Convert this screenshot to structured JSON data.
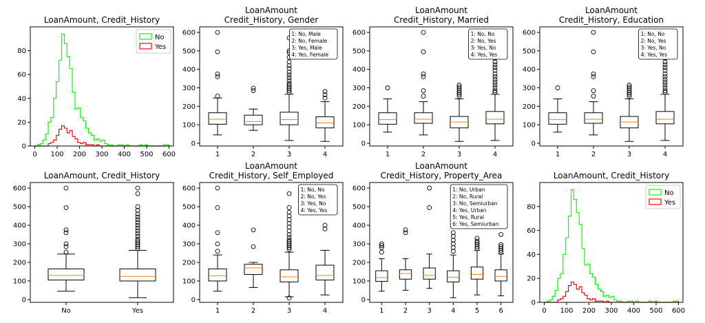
{
  "chart_data": [
    {
      "type": "histogram",
      "title": [
        "LoanAmount, Credit_History"
      ],
      "xlim": [
        -20,
        620
      ],
      "ylim": [
        0,
        100
      ],
      "xticks": [
        0,
        100,
        200,
        300,
        400,
        500,
        600
      ],
      "yticks": [
        0,
        20,
        40,
        60,
        80
      ],
      "bin_edges": [
        0,
        12,
        24,
        36,
        48,
        60,
        72,
        84,
        96,
        108,
        120,
        132,
        144,
        156,
        168,
        180,
        192,
        204,
        216,
        228,
        240,
        252,
        264,
        276,
        288,
        300,
        312,
        324,
        336,
        348,
        360,
        372,
        384,
        396,
        408,
        420,
        432,
        444,
        456,
        468,
        480,
        492,
        504,
        516,
        528,
        540,
        552,
        564,
        576,
        588,
        600
      ],
      "series": [
        {
          "name": "No",
          "color": "#00ff00",
          "values": [
            0,
            1,
            2,
            5,
            10,
            20,
            24,
            40,
            54,
            72,
            94,
            86,
            75,
            65,
            45,
            31,
            32,
            24,
            21,
            15,
            11,
            9,
            5,
            6,
            4,
            5,
            2,
            1,
            1,
            0,
            0,
            1,
            1,
            0,
            1,
            0,
            0,
            0,
            0,
            1,
            0,
            1,
            0,
            0,
            0,
            0,
            0,
            0,
            1,
            1
          ]
        },
        {
          "name": "Yes",
          "color": "#ff0000",
          "values": [
            0,
            0,
            0,
            0,
            0,
            2,
            3,
            5,
            9,
            14,
            17,
            15,
            11,
            13,
            8,
            6,
            3,
            2,
            3,
            1,
            1,
            1,
            0,
            1,
            0,
            0,
            0,
            0,
            0,
            0,
            0,
            0,
            0,
            0,
            0,
            0,
            0,
            0,
            0,
            0,
            0,
            0,
            0,
            0,
            0,
            0,
            0,
            0,
            0,
            0
          ]
        }
      ],
      "legend_position": "top-right"
    },
    {
      "type": "boxplot",
      "title": [
        "LoanAmount",
        "Credit_History, Gender"
      ],
      "ylim": [
        -15,
        630
      ],
      "yticks": [
        0,
        100,
        200,
        300,
        400,
        500,
        600
      ],
      "categories": [
        "1",
        "2",
        "3",
        "4"
      ],
      "boxes": [
        {
          "whislo": 45,
          "q1": 103,
          "med": 130,
          "q3": 165,
          "whishi": 245,
          "fliers": [
            255,
            360,
            375,
            495,
            600
          ]
        },
        {
          "whislo": 70,
          "q1": 100,
          "med": 118,
          "q3": 152,
          "whishi": 185,
          "fliers": [
            285,
            298
          ]
        },
        {
          "whislo": 15,
          "q1": 100,
          "med": 128,
          "q3": 168,
          "whishi": 265,
          "fliers": [
            275,
            285,
            295,
            305,
            315,
            325,
            340,
            355,
            370,
            385,
            405,
            420,
            440,
            465,
            490,
            500,
            570
          ]
        },
        {
          "whislo": 10,
          "q1": 83,
          "med": 110,
          "q3": 143,
          "whishi": 225,
          "fliers": [
            245,
            262,
            280,
            470
          ]
        }
      ],
      "annotation": [
        "1: No, Male",
        "2: No, Female",
        "3: Yes, Male",
        "4: Yes, Female"
      ]
    },
    {
      "type": "boxplot",
      "title": [
        "LoanAmount",
        "Credit_History, Married"
      ],
      "ylim": [
        -15,
        630
      ],
      "yticks": [
        0,
        100,
        200,
        300,
        400,
        500,
        600
      ],
      "categories": [
        "1",
        "2",
        "3",
        "4"
      ],
      "boxes": [
        {
          "whislo": 60,
          "q1": 103,
          "med": 128,
          "q3": 165,
          "whishi": 240,
          "fliers": [
            300
          ]
        },
        {
          "whislo": 45,
          "q1": 108,
          "med": 130,
          "q3": 165,
          "whishi": 225,
          "fliers": [
            255,
            285,
            360,
            375,
            495,
            600
          ]
        },
        {
          "whislo": 10,
          "q1": 83,
          "med": 115,
          "q3": 145,
          "whishi": 240,
          "fliers": [
            255,
            265,
            275,
            285,
            295,
            305,
            315
          ]
        },
        {
          "whislo": 15,
          "q1": 105,
          "med": 130,
          "q3": 172,
          "whishi": 265,
          "fliers": [
            275,
            285,
            300,
            315,
            330,
            345,
            360,
            375,
            395,
            410,
            425,
            440,
            460,
            480,
            500,
            570,
            600
          ]
        }
      ],
      "annotation": [
        "1: No, No",
        "2: No, Yes",
        "3: Yes, No",
        "4: Yes, Yes"
      ]
    },
    {
      "type": "boxplot",
      "title": [
        "LoanAmount",
        "Credit_History, Education"
      ],
      "ylim": [
        -15,
        630
      ],
      "yticks": [
        0,
        100,
        200,
        300,
        400,
        500,
        600
      ],
      "categories": [
        "1",
        "2",
        "3",
        "4"
      ],
      "boxes": [
        {
          "whislo": 60,
          "q1": 103,
          "med": 128,
          "q3": 165,
          "whishi": 240,
          "fliers": [
            300
          ]
        },
        {
          "whislo": 45,
          "q1": 108,
          "med": 130,
          "q3": 165,
          "whishi": 225,
          "fliers": [
            255,
            285,
            360,
            375,
            495,
            600
          ]
        },
        {
          "whislo": 10,
          "q1": 83,
          "med": 115,
          "q3": 145,
          "whishi": 240,
          "fliers": [
            255,
            265,
            275,
            285,
            295,
            305,
            315
          ]
        },
        {
          "whislo": 15,
          "q1": 105,
          "med": 130,
          "q3": 172,
          "whishi": 265,
          "fliers": [
            275,
            285,
            300,
            315,
            330,
            345,
            360,
            375,
            395,
            410,
            425,
            440,
            460,
            480,
            500,
            570,
            600
          ]
        }
      ],
      "annotation": [
        "1: No, No",
        "2: No, Yes",
        "3: Yes, No",
        "4: Yes, Yes"
      ]
    },
    {
      "type": "boxplot",
      "title": [
        "LoanAmount, Credit_History"
      ],
      "ylim": [
        -15,
        630
      ],
      "yticks": [
        0,
        100,
        200,
        300,
        400,
        500,
        600
      ],
      "categories": [
        "No",
        "Yes"
      ],
      "boxes": [
        {
          "whislo": 45,
          "q1": 105,
          "med": 130,
          "q3": 165,
          "whishi": 245,
          "fliers": [
            255,
            285,
            300,
            360,
            375,
            495,
            600
          ]
        },
        {
          "whislo": 10,
          "q1": 100,
          "med": 125,
          "q3": 165,
          "whishi": 265,
          "fliers": [
            275,
            285,
            295,
            305,
            315,
            325,
            340,
            355,
            370,
            385,
            400,
            415,
            430,
            445,
            460,
            480,
            500,
            570,
            600
          ]
        }
      ]
    },
    {
      "type": "boxplot",
      "title": [
        "LoanAmount",
        "Credit_History, Self_Employed"
      ],
      "ylim": [
        -15,
        630
      ],
      "yticks": [
        0,
        100,
        200,
        300,
        400,
        500,
        600
      ],
      "categories": [
        "1",
        "2",
        "3",
        "4"
      ],
      "boxes": [
        {
          "whislo": 45,
          "q1": 100,
          "med": 128,
          "q3": 165,
          "whishi": 240,
          "fliers": [
            260,
            300,
            360,
            495,
            600
          ]
        },
        {
          "whislo": 65,
          "q1": 135,
          "med": 170,
          "q3": 190,
          "whishi": 200,
          "fliers": [
            285,
            375
          ]
        },
        {
          "whislo": 15,
          "q1": 95,
          "med": 122,
          "q3": 160,
          "whishi": 255,
          "fliers": [
            8,
            270,
            280,
            290,
            300,
            310,
            320,
            335,
            350,
            370,
            390,
            410,
            430,
            450,
            470,
            495,
            570
          ]
        },
        {
          "whislo": 25,
          "q1": 105,
          "med": 130,
          "q3": 185,
          "whishi": 265,
          "fliers": [
            380,
            400
          ]
        }
      ],
      "annotation": [
        "1: No, No",
        "2: No, Yes",
        "3: Yes, No",
        "4: Yes, Yes"
      ]
    },
    {
      "type": "boxplot",
      "title": [
        "LoanAmount",
        "Credit_History, Property_Area"
      ],
      "ylim": [
        -15,
        630
      ],
      "yticks": [
        0,
        100,
        200,
        300,
        400,
        500,
        600
      ],
      "categories": [
        "1",
        "2",
        "3",
        "4",
        "5",
        "6"
      ],
      "boxes": [
        {
          "whislo": 45,
          "q1": 98,
          "med": 118,
          "q3": 155,
          "whishi": 220,
          "fliers": [
            255,
            280,
            290,
            300
          ]
        },
        {
          "whislo": 50,
          "q1": 110,
          "med": 140,
          "q3": 160,
          "whishi": 220,
          "fliers": [
            360,
            375
          ]
        },
        {
          "whislo": 60,
          "q1": 110,
          "med": 130,
          "q3": 170,
          "whishi": 245,
          "fliers": [
            495,
            600
          ]
        },
        {
          "whislo": 10,
          "q1": 95,
          "med": 120,
          "q3": 155,
          "whishi": 240,
          "fliers": [
            260,
            280,
            300,
            320,
            340,
            360,
            405,
            460,
            500
          ]
        },
        {
          "whislo": 25,
          "q1": 110,
          "med": 135,
          "q3": 175,
          "whishi": 265,
          "fliers": [
            275,
            285,
            295,
            305,
            315,
            330
          ]
        },
        {
          "whislo": 20,
          "q1": 100,
          "med": 125,
          "q3": 160,
          "whishi": 245,
          "fliers": [
            255,
            265,
            275,
            285,
            295,
            350
          ]
        }
      ],
      "annotation": [
        "1: No, Urban",
        "2: No, Rural",
        "3: No, Semiurban",
        "4: Yes, Urban",
        "5: Yes, Rural",
        "6: Yes, Semiurban"
      ]
    },
    {
      "type": "histogram",
      "title": [
        "LoanAmount, Credit_History"
      ],
      "xlim": [
        -20,
        620
      ],
      "ylim": [
        0,
        100
      ],
      "xticks": [
        0,
        100,
        200,
        300,
        400,
        500,
        600
      ],
      "yticks": [
        0,
        20,
        40,
        60,
        80
      ],
      "bin_edges": [
        0,
        12,
        24,
        36,
        48,
        60,
        72,
        84,
        96,
        108,
        120,
        132,
        144,
        156,
        168,
        180,
        192,
        204,
        216,
        228,
        240,
        252,
        264,
        276,
        288,
        300,
        312,
        324,
        336,
        348,
        360,
        372,
        384,
        396,
        408,
        420,
        432,
        444,
        456,
        468,
        480,
        492,
        504,
        516,
        528,
        540,
        552,
        564,
        576,
        588,
        600
      ],
      "series": [
        {
          "name": "No",
          "color": "#00ff00",
          "values": [
            0,
            1,
            2,
            5,
            10,
            20,
            24,
            40,
            54,
            72,
            94,
            86,
            75,
            65,
            45,
            31,
            32,
            24,
            21,
            15,
            11,
            9,
            5,
            6,
            4,
            5,
            2,
            1,
            1,
            0,
            0,
            1,
            1,
            0,
            1,
            0,
            0,
            0,
            0,
            1,
            0,
            1,
            0,
            0,
            0,
            0,
            0,
            0,
            1,
            1
          ]
        },
        {
          "name": "Yes",
          "color": "#ff0000",
          "values": [
            0,
            0,
            0,
            0,
            0,
            2,
            3,
            5,
            9,
            14,
            17,
            15,
            11,
            13,
            8,
            6,
            3,
            2,
            3,
            1,
            1,
            1,
            0,
            1,
            0,
            0,
            0,
            0,
            0,
            0,
            0,
            0,
            0,
            0,
            0,
            0,
            0,
            0,
            0,
            0,
            0,
            0,
            0,
            0,
            0,
            0,
            0,
            0,
            0,
            0
          ]
        }
      ],
      "legend_position": "top-right"
    }
  ]
}
